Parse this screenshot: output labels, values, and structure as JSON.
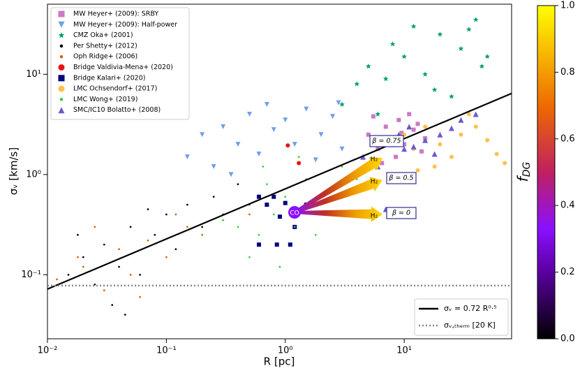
{
  "chart_data": {
    "type": "scatter",
    "xlabel": "R [pc]",
    "ylabel": "σᵥ [km/s]",
    "xscale": "log",
    "yscale": "log",
    "xlim": [
      0.01,
      80
    ],
    "ylim": [
      0.023,
      50
    ],
    "xticks": [
      {
        "value": 0.01,
        "label": "10⁻²"
      },
      {
        "value": 0.1,
        "label": "10⁻¹"
      },
      {
        "value": 1,
        "label": "10⁰"
      },
      {
        "value": 10,
        "label": "10¹"
      }
    ],
    "yticks": [
      {
        "value": 0.1,
        "label": "10⁻¹"
      },
      {
        "value": 1,
        "label": "10⁰"
      },
      {
        "value": 10,
        "label": "10¹"
      }
    ],
    "legend": "upper left",
    "series": [
      {
        "name": "MW Heyer+ (2009): SRBY",
        "marker": "square",
        "color": "#cc79c4",
        "x": [
          5,
          6,
          7,
          8,
          9,
          10,
          12,
          14,
          6.5,
          11,
          8.5,
          13,
          5.5,
          9.5,
          15
        ],
        "values": [
          2.5,
          1.8,
          3,
          2.2,
          3.5,
          2,
          2.8,
          1.7,
          1.3,
          4,
          1.5,
          3.2,
          3.8,
          2.6,
          2.3
        ]
      },
      {
        "name": "MW Heyer+ (2009): Half-power",
        "marker": "tri-down",
        "color": "#6fa0e8",
        "x": [
          0.15,
          0.2,
          0.25,
          0.3,
          0.4,
          0.5,
          0.6,
          0.8,
          1,
          1.2,
          1.5,
          2,
          2.5,
          3,
          0.35,
          0.7,
          1.8,
          2.8
        ],
        "values": [
          1.5,
          2.5,
          1.2,
          3,
          2,
          4,
          1.6,
          2.8,
          3.5,
          2,
          4.5,
          2.5,
          3.8,
          1.8,
          1,
          5,
          1.4,
          5.2
        ]
      },
      {
        "name": "CMZ Oka+ (2001)",
        "marker": "star",
        "color": "#009e73",
        "x": [
          3,
          4,
          5,
          6,
          8,
          10,
          12,
          15,
          20,
          25,
          30,
          40,
          45,
          35,
          7,
          18,
          50
        ],
        "values": [
          5,
          8,
          12,
          4,
          20,
          15,
          30,
          10,
          25,
          6,
          18,
          35,
          12,
          28,
          9,
          7,
          15
        ]
      },
      {
        "name": "Per Shetty+ (2012)",
        "marker": "dot",
        "color": "#000000",
        "x": [
          0.015,
          0.02,
          0.025,
          0.03,
          0.04,
          0.05,
          0.06,
          0.08,
          0.1,
          0.12,
          0.15,
          0.2,
          0.25,
          0.3,
          0.4,
          0.5,
          0.035,
          0.045,
          0.07,
          0.018
        ],
        "values": [
          0.1,
          0.15,
          0.08,
          0.2,
          0.12,
          0.3,
          0.1,
          0.25,
          0.4,
          0.18,
          0.5,
          0.3,
          0.6,
          0.4,
          0.8,
          0.5,
          0.05,
          0.04,
          0.45,
          0.25
        ]
      },
      {
        "name": "Oph Ridge+ (2006)",
        "marker": "dot",
        "color": "#d55e00",
        "x": [
          0.012,
          0.02,
          0.03,
          0.04,
          0.05,
          0.07,
          0.1,
          0.15,
          0.2,
          0.3,
          0.5,
          0.025,
          0.06,
          0.12,
          0.018
        ],
        "values": [
          0.09,
          0.12,
          0.07,
          0.18,
          0.1,
          0.22,
          0.15,
          0.3,
          0.25,
          0.35,
          0.4,
          0.3,
          0.06,
          0.4,
          0.15
        ]
      },
      {
        "name": "Bridge Valdivia-Mena+ (2020)",
        "marker": "circle",
        "color": "#ee1111",
        "x": [
          1.05,
          1.3
        ],
        "values": [
          1.95,
          1.3
        ]
      },
      {
        "name": "Bridge Kalari+ (2020)",
        "marker": "square",
        "color": "#000080",
        "x": [
          0.6,
          0.8,
          0.7,
          1.0,
          0.9,
          1.2,
          0.6,
          0.85,
          1.1,
          1.5
        ],
        "values": [
          0.6,
          0.6,
          0.5,
          0.52,
          0.38,
          0.3,
          0.2,
          0.2,
          0.2,
          0.5
        ]
      },
      {
        "name": "LMC Ochsendorf+ (2017)",
        "marker": "circle",
        "color": "#ffc04d",
        "x": [
          10,
          12,
          15,
          20,
          25,
          30,
          40,
          50,
          60,
          70,
          18,
          35,
          13
        ],
        "values": [
          2.5,
          1.8,
          3,
          2,
          1.5,
          2.5,
          3,
          2.2,
          1.6,
          1.3,
          1.2,
          4,
          1.1
        ]
      },
      {
        "name": "LMC Wong+ (2019)",
        "marker": "dot",
        "color": "#33cc33",
        "x": [
          0.4,
          0.5,
          0.6,
          0.7,
          0.8,
          1,
          1.2,
          1.5,
          2,
          2.5,
          3,
          0.5,
          0.9,
          1.8,
          0.3,
          0.65,
          1.3,
          4
        ],
        "values": [
          0.3,
          0.5,
          0.25,
          0.8,
          0.4,
          0.6,
          0.3,
          0.9,
          0.5,
          0.7,
          1.2,
          0.15,
          0.12,
          0.25,
          0.35,
          1.2,
          1.5,
          0.9
        ]
      },
      {
        "name": "SMC/IC10 Bolatto+ (2008)",
        "marker": "tri-up",
        "color": "#6a5acd",
        "x": [
          4.5,
          6,
          7,
          8,
          9,
          10,
          12,
          15,
          18,
          20,
          25,
          30,
          40,
          11,
          6.5
        ],
        "values": [
          1.5,
          1.2,
          0.45,
          2,
          2.5,
          1.8,
          1.9,
          2.2,
          1.6,
          2.5,
          2.9,
          3.5,
          4,
          3,
          2
        ]
      }
    ],
    "lines": [
      {
        "name": "σᵥ = 0.72 R⁰·⁵",
        "style": "solid",
        "color": "#000000",
        "x": [
          0.01,
          80
        ],
        "values": [
          0.072,
          6.44
        ]
      },
      {
        "name": "σᵥ,ₜₕₑᵣₘ [20 K]",
        "style": "dotted",
        "color": "#888888",
        "x": [
          0.01,
          80
        ],
        "values": [
          0.078,
          0.078
        ]
      }
    ],
    "annotations": {
      "co": "CO",
      "h2": [
        "H₂",
        "H₂",
        "H₂"
      ],
      "beta": [
        "β = 0.75",
        "β = 0.5",
        "β = 0"
      ]
    },
    "colorbar": {
      "label": "f",
      "label_sub": "DG",
      "lim": [
        0,
        1
      ],
      "ticks": [
        {
          "value": 0,
          "label": "0.0"
        },
        0.2,
        0.4,
        0.6,
        0.8,
        {
          "value": 1,
          "label": "1.0"
        }
      ]
    }
  }
}
